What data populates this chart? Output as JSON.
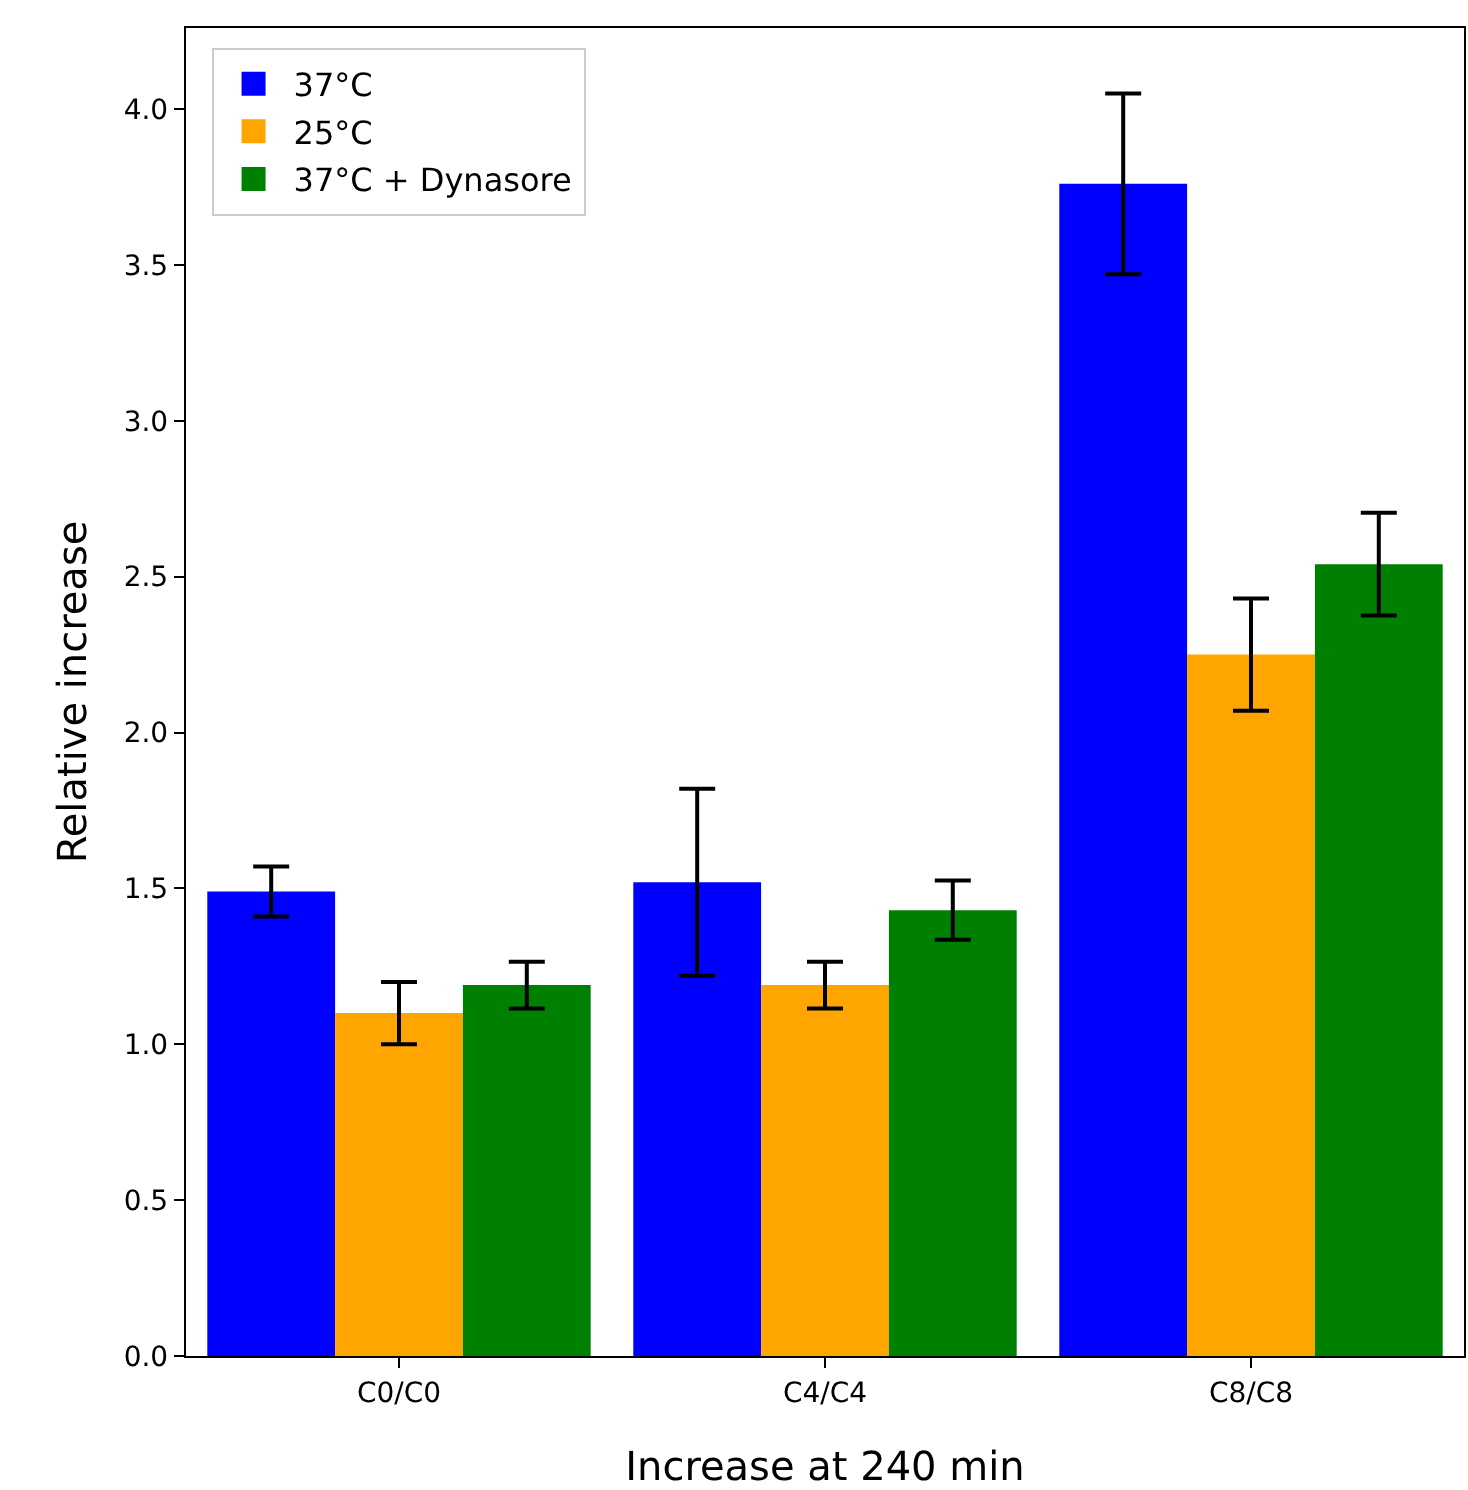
{
  "chart_data": {
    "type": "bar",
    "xlabel": "Increase at 240 min",
    "ylabel": "Relative increase",
    "categories": [
      "C0/C0",
      "C4/C4",
      "C8/C8"
    ],
    "series": [
      {
        "name": "37°C",
        "color": "#0000ff",
        "values": [
          1.49,
          1.52,
          3.76
        ],
        "errors": [
          0.08,
          0.3,
          0.29
        ]
      },
      {
        "name": "25°C",
        "color": "#ffa500",
        "values": [
          1.1,
          1.19,
          2.25
        ],
        "errors": [
          0.1,
          0.075,
          0.18
        ]
      },
      {
        "name": "37°C + Dynasore",
        "color": "#008000",
        "values": [
          1.19,
          1.43,
          2.54
        ],
        "errors": [
          0.075,
          0.095,
          0.165
        ]
      }
    ],
    "ylim": [
      0,
      4.26
    ],
    "yticks": [
      {
        "value": 0,
        "label": "0.0"
      },
      {
        "value": 0.5,
        "label": "0.5"
      },
      {
        "value": 1,
        "label": "1.0"
      },
      {
        "value": 1.5,
        "label": "1.5"
      },
      {
        "value": 2,
        "label": "2.0"
      },
      {
        "value": 2.5,
        "label": "2.5"
      },
      {
        "value": 3,
        "label": "3.0"
      },
      {
        "value": 3.5,
        "label": "3.5"
      },
      {
        "value": 4,
        "label": "4.0"
      }
    ],
    "grid": false,
    "legend": "top left"
  }
}
